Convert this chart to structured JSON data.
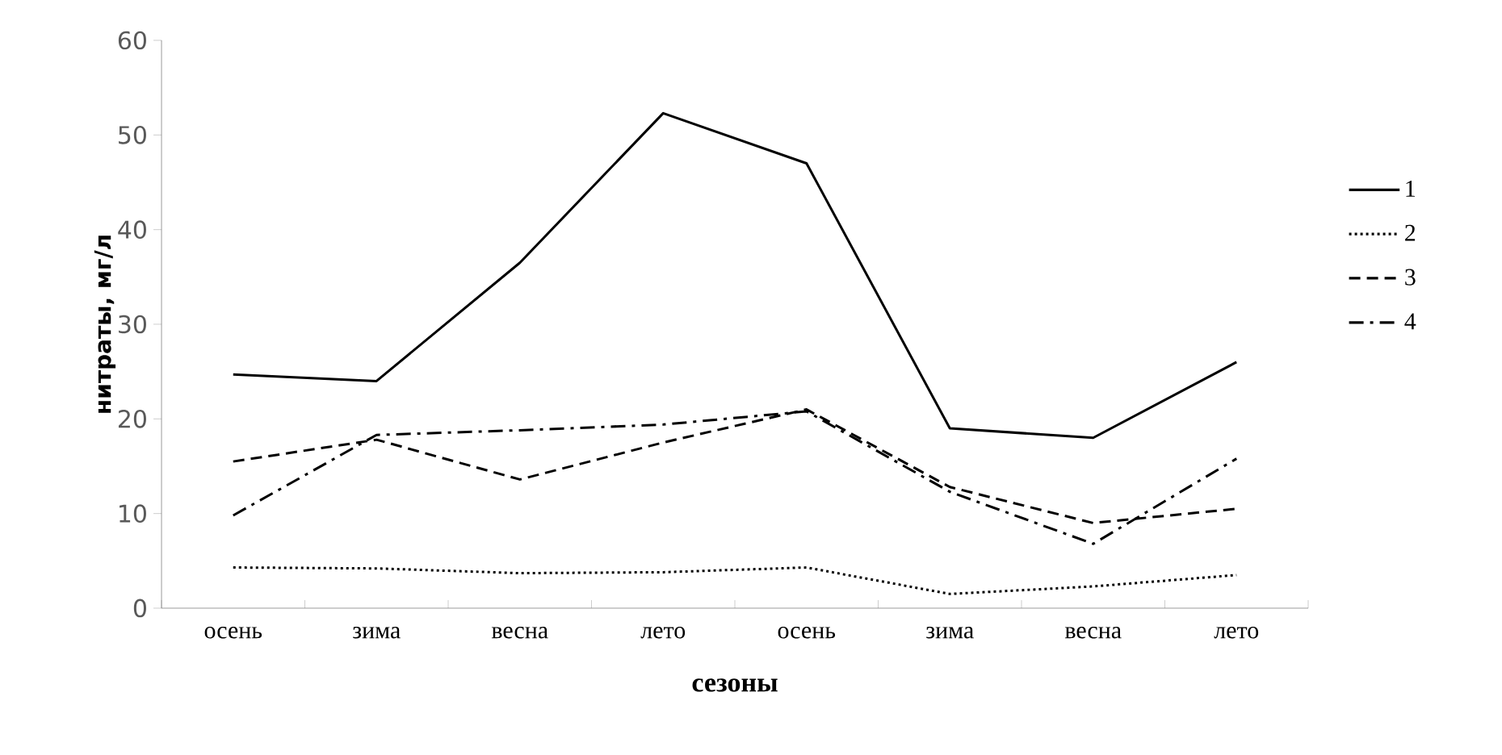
{
  "chart_data": {
    "type": "line",
    "xlabel": "сезоны",
    "ylabel": "нитраты, мг/л",
    "categories": [
      "осень",
      "зима",
      "весна",
      "лето",
      "осень",
      "зима",
      "весна",
      "лето"
    ],
    "ylim": [
      0,
      60
    ],
    "yticks": [
      0,
      10,
      20,
      30,
      40,
      50,
      60
    ],
    "legend": "right",
    "marker": "none",
    "series": [
      {
        "name": "1",
        "color": "#000000",
        "line_style": "solid",
        "values": [
          24.7,
          24,
          36.5,
          52.3,
          47,
          19,
          18,
          26
        ]
      },
      {
        "name": "2",
        "color": "#000000",
        "line_style": "dotted",
        "values": [
          4.3,
          4.2,
          3.7,
          3.8,
          4.3,
          1.5,
          2.3,
          3.5
        ]
      },
      {
        "name": "3",
        "color": "#000000",
        "line_style": "dashed",
        "values": [
          15.5,
          17.8,
          13.6,
          17.5,
          21,
          12.8,
          9,
          10.5
        ]
      },
      {
        "name": "4",
        "color": "#000000",
        "line_style": "dashdot",
        "values": [
          9.8,
          18.3,
          18.8,
          19.4,
          20.8,
          12.3,
          6.8,
          15.8
        ]
      }
    ]
  }
}
